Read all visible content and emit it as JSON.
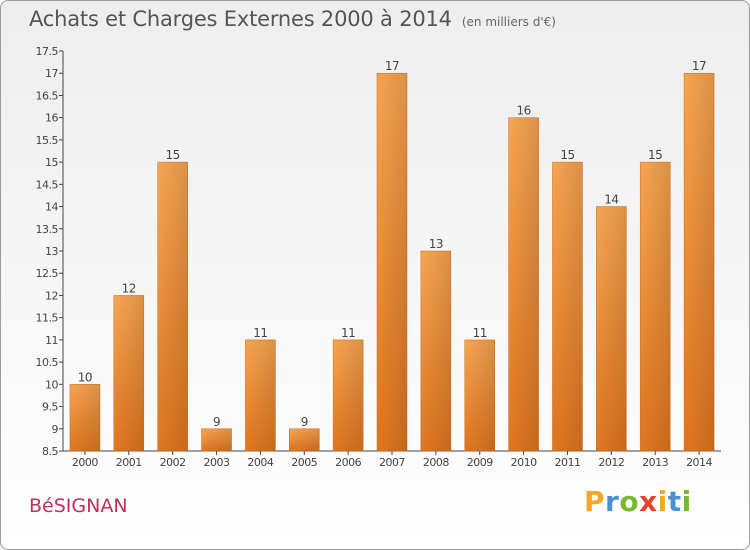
{
  "header": {
    "title": "Achats et Charges Externes 2000 à 2014",
    "unit": "(en milliers d'€)"
  },
  "footer": {
    "place": "BéSIGNAN",
    "logo": {
      "letters": [
        "P",
        "r",
        "o",
        "x",
        "i",
        "t",
        "i"
      ],
      "colors": [
        "#f5a623",
        "#4a90d9",
        "#7cb82f",
        "#e8412c",
        "#f5a623",
        "#4a90d9",
        "#7cb82f"
      ]
    }
  },
  "chart_data": {
    "type": "bar",
    "categories": [
      "2000",
      "2001",
      "2002",
      "2003",
      "2004",
      "2005",
      "2006",
      "2007",
      "2008",
      "2009",
      "2010",
      "2011",
      "2012",
      "2013",
      "2014"
    ],
    "values": [
      10,
      12,
      15,
      9,
      11,
      9,
      11,
      17,
      13,
      11,
      16,
      15,
      14,
      15,
      17
    ],
    "data_labels": [
      "10",
      "12",
      "15",
      "9",
      "11",
      "9",
      "11",
      "17",
      "13",
      "11",
      "16",
      "15",
      "14",
      "15",
      "17"
    ],
    "yticks": [
      "8.5",
      "9",
      "9.5",
      "10",
      "10.5",
      "11",
      "11.5",
      "12",
      "12.5",
      "13",
      "13.5",
      "14",
      "14.5",
      "15",
      "15.5",
      "16",
      "16.5",
      "17",
      "17.5"
    ],
    "ylim": [
      8.5,
      17.5
    ],
    "grid": false,
    "bar_color": "#f08c2c"
  }
}
